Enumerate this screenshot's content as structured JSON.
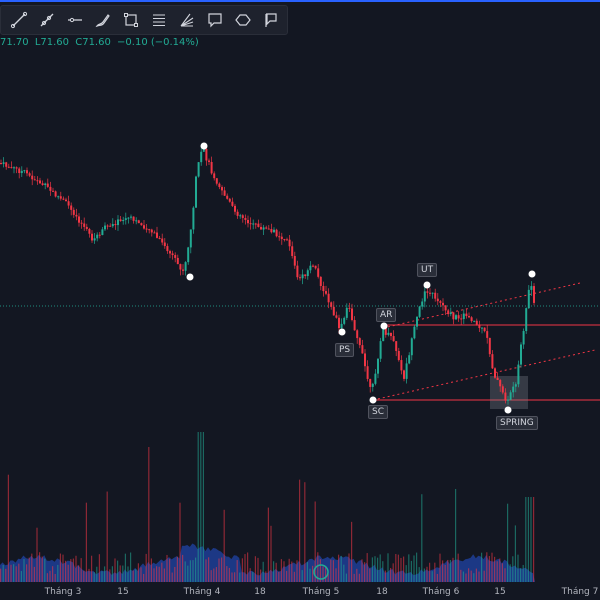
{
  "toolbar": {
    "tools": [
      {
        "name": "trend-line-icon"
      },
      {
        "name": "ray-icon"
      },
      {
        "name": "horizontal-line-icon"
      },
      {
        "name": "brush-icon"
      },
      {
        "name": "rectangle-icon"
      },
      {
        "name": "parallel-lines-icon"
      },
      {
        "name": "fib-fan-icon"
      },
      {
        "name": "callout-icon"
      },
      {
        "name": "ellipse-icon"
      },
      {
        "name": "flag-icon"
      }
    ]
  },
  "ohlc": {
    "high": "71.70",
    "low": "L71.60",
    "close": "C71.60",
    "change": "−0.10 (−0.14%)"
  },
  "annotations": {
    "ps": "PS",
    "sc": "SC",
    "ar": "AR",
    "ut": "UT",
    "spring": "SPRING"
  },
  "x_axis": {
    "labels": [
      "Tháng 3",
      "15",
      "Tháng 4",
      "18",
      "Tháng 5",
      "18",
      "Tháng 6",
      "15",
      "Tháng 7"
    ]
  },
  "colors": {
    "up": "#22ab94",
    "down": "#f23645",
    "background": "#131722",
    "level_line": "#f23645",
    "volume_area": "#2962ff"
  }
}
